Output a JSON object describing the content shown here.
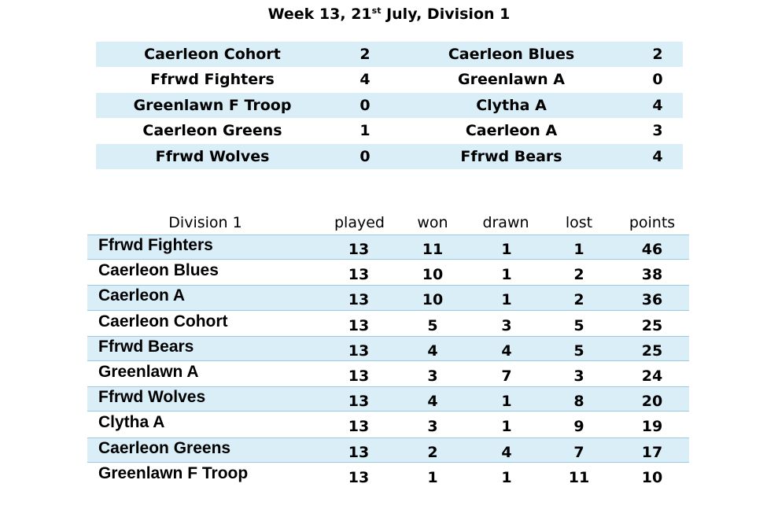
{
  "title": {
    "prefix": "Week 13, 21",
    "sup": "st",
    "suffix": " July, Division 1"
  },
  "results": [
    {
      "home": "Caerleon Cohort",
      "home_score": "2",
      "away": "Caerleon Blues",
      "away_score": "2"
    },
    {
      "home": "Ffrwd Fighters",
      "home_score": "4",
      "away": "Greenlawn A",
      "away_score": "0"
    },
    {
      "home": "Greenlawn F Troop",
      "home_score": "0",
      "away": "Clytha A",
      "away_score": "4"
    },
    {
      "home": "Caerleon Greens",
      "home_score": "1",
      "away": "Caerleon A",
      "away_score": "3"
    },
    {
      "home": "Ffrwd Wolves",
      "home_score": "0",
      "away": "Ffrwd Bears",
      "away_score": "4"
    }
  ],
  "league": {
    "headers": {
      "division": "Division 1",
      "played": "played",
      "won": "won",
      "drawn": "drawn",
      "lost": "lost",
      "points": "points"
    },
    "rows": [
      {
        "team": "Ffrwd Fighters",
        "played": "13",
        "won": "11",
        "drawn": "1",
        "lost": "1",
        "points": "46"
      },
      {
        "team": "Caerleon Blues",
        "played": "13",
        "won": "10",
        "drawn": "1",
        "lost": "2",
        "points": "38"
      },
      {
        "team": "Caerleon A",
        "played": "13",
        "won": "10",
        "drawn": "1",
        "lost": "2",
        "points": "36"
      },
      {
        "team": "Caerleon Cohort",
        "played": "13",
        "won": "5",
        "drawn": "3",
        "lost": "5",
        "points": "25"
      },
      {
        "team": "Ffrwd Bears",
        "played": "13",
        "won": "4",
        "drawn": "4",
        "lost": "5",
        "points": "25"
      },
      {
        "team": "Greenlawn A",
        "played": "13",
        "won": "3",
        "drawn": "7",
        "lost": "3",
        "points": "24"
      },
      {
        "team": "Ffrwd Wolves",
        "played": "13",
        "won": "4",
        "drawn": "1",
        "lost": "8",
        "points": "20"
      },
      {
        "team": "Clytha A",
        "played": "13",
        "won": "3",
        "drawn": "1",
        "lost": "9",
        "points": "19"
      },
      {
        "team": "Caerleon Greens",
        "played": "13",
        "won": "2",
        "drawn": "4",
        "lost": "7",
        "points": "17"
      },
      {
        "team": "Greenlawn F Troop",
        "played": "13",
        "won": "1",
        "drawn": "1",
        "lost": "11",
        "points": "10"
      }
    ]
  },
  "colors": {
    "row_shade": "#daeef8",
    "row_border": "#9bc9e4",
    "text": "#000000",
    "background": "#ffffff"
  }
}
